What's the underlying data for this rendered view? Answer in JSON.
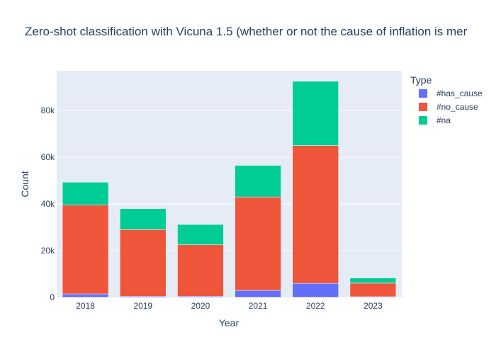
{
  "chart_data": {
    "type": "bar",
    "barmode": "stack",
    "title": "Zero-shot classification with Vicuna 1.5   (whether or not the cause of inflation is mer",
    "xlabel": "Year",
    "ylabel": "Count",
    "categories": [
      "2018",
      "2019",
      "2020",
      "2021",
      "2022",
      "2023"
    ],
    "ylim": [
      0,
      97000
    ],
    "yticks": [
      {
        "value": 0,
        "label": "0"
      },
      {
        "value": 20000,
        "label": "20k"
      },
      {
        "value": 40000,
        "label": "40k"
      },
      {
        "value": 60000,
        "label": "60k"
      },
      {
        "value": 80000,
        "label": "80k"
      }
    ],
    "grid": true,
    "legend_title": "Type",
    "legend_position": "right",
    "series": [
      {
        "name": "#has_cause",
        "color": "#636efa",
        "values": [
          1500,
          500,
          500,
          3000,
          6000,
          300
        ]
      },
      {
        "name": "#no_cause",
        "color": "#ef553b",
        "values": [
          38000,
          28500,
          22000,
          40000,
          59000,
          5800
        ]
      },
      {
        "name": "#na",
        "color": "#00cc96",
        "values": [
          9800,
          9000,
          8700,
          13500,
          27500,
          2200
        ]
      }
    ]
  }
}
